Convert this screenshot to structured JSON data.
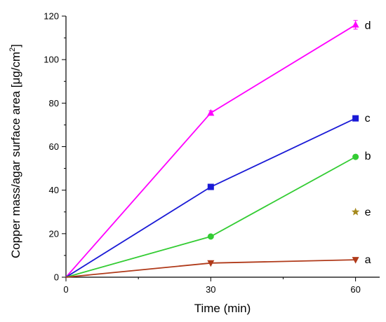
{
  "chart_data": {
    "type": "line",
    "xlabel": "Time (min)",
    "ylabel_main": "Copper mass/agar surface area [μg/cm",
    "ylabel_sup": "2",
    "ylabel_end": "]",
    "xlim": [
      0,
      65
    ],
    "ylim": [
      0,
      120
    ],
    "xticks": [
      0,
      30,
      60
    ],
    "xtick_labels": [
      "0",
      "30",
      "60"
    ],
    "yticks": [
      0,
      20,
      40,
      60,
      80,
      100,
      120
    ],
    "ytick_labels": [
      "0",
      "20",
      "40",
      "60",
      "80",
      "100",
      "120"
    ],
    "grid": false,
    "legend": "none",
    "series": [
      {
        "name": "d",
        "x": [
          0,
          30,
          60
        ],
        "y": [
          0,
          75.5,
          116
        ],
        "color": "#ff00ff",
        "marker": "triangle-up",
        "error": [
          0,
          1,
          2
        ]
      },
      {
        "name": "c",
        "x": [
          0,
          30,
          60
        ],
        "y": [
          0,
          41.5,
          73
        ],
        "color": "#1a1ad6",
        "marker": "square",
        "error": [
          0,
          0,
          0
        ]
      },
      {
        "name": "b",
        "x": [
          0,
          30,
          60
        ],
        "y": [
          0,
          18.7,
          55.3
        ],
        "color": "#33cc33",
        "marker": "circle",
        "error": [
          0,
          0,
          0
        ]
      },
      {
        "name": "e",
        "x": [
          60
        ],
        "y": [
          30
        ],
        "color": "#a68a1e",
        "marker": "star",
        "error": [
          0
        ]
      },
      {
        "name": "a",
        "x": [
          0,
          30,
          60
        ],
        "y": [
          0,
          6.5,
          8
        ],
        "color": "#b03a1a",
        "marker": "triangle-down",
        "error": [
          0,
          0,
          0
        ]
      }
    ]
  }
}
